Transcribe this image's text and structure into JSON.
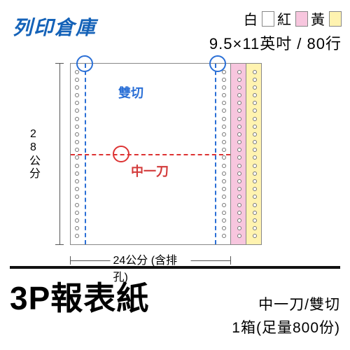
{
  "brand": {
    "text": "列印倉庫",
    "color": "#1462b8",
    "fontsize": 28
  },
  "colors_header": {
    "labels": [
      "白",
      "紅",
      "黃"
    ],
    "swatches": [
      "#ffffff",
      "#f7c6de",
      "#fff3b0"
    ]
  },
  "dimensions_text": "9.5×11英吋 / 80行",
  "diagram": {
    "sheet_colors": {
      "white": "#ffffff",
      "pink": "#f7c6de",
      "yellow": "#fff3b0"
    },
    "perf_vertical_color": "#2a6fd6",
    "perf_horizontal_color": "#d33a3a",
    "vertical_label": "雙切",
    "horizontal_label": "中一刀",
    "height_label": "28公分",
    "width_label": "24公分 (含排孔)",
    "hole_count_per_strip": 22
  },
  "footer": {
    "title": "3P報表紙",
    "title_fontsize": 46,
    "line1": "中一刀/雙切",
    "line2": "1箱(足量800份)"
  }
}
